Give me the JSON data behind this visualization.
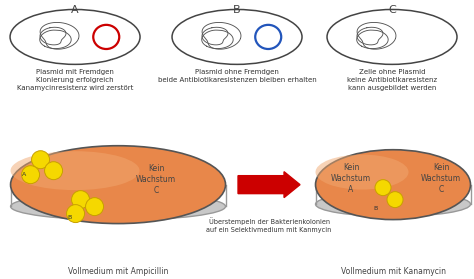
{
  "bg_color": "#ffffff",
  "cell_outline": "#444444",
  "plasmid_color": "#555555",
  "red_circle_color": "#cc0000",
  "blue_circle_color": "#2255bb",
  "arrow_color": "#cc0000",
  "petri_orange_top": "#e8874a",
  "petri_orange_light": "#f0a870",
  "petri_shadow": "#c8c8c8",
  "petri_shadow_edge": "#999999",
  "petri_edge": "#555555",
  "colony_color": "#f5d800",
  "colony_outline": "#c8a000",
  "text_A": "Plasmid mit Fremdgen\nKlonierung erfolgreich\nKanamycinresistenz wird zerstört",
  "text_B": "Plasmid ohne Fremdgen\nbeide Antibiotikaresistenzen bleiben erhalten",
  "text_C": "Zelle ohne Plasmid\nkeine Antibiotikaresistenz\nkann ausgebildet werden",
  "petri_left_label": "Vollmedium mit Ampicillin",
  "petri_right_label": "Vollmedium mit Kanamycin",
  "arrow_text": "Überstempeln der Bakterienkolonien\nauf ein Selektivmedium mit Kanmycin",
  "kein_wachstum": "Kein\nWachstum",
  "font_size_label": 8,
  "font_size_text": 5.0,
  "font_size_kein": 5.5,
  "font_size_bottom": 5.5
}
